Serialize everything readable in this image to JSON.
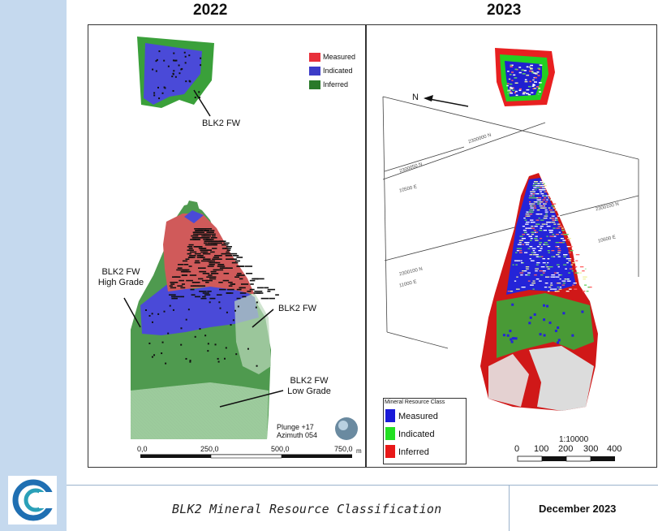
{
  "panels": {
    "left": {
      "year": "2022",
      "legend": [
        {
          "label": "Measured",
          "color": "#e8303a"
        },
        {
          "label": "Indicated",
          "color": "#3c3cc8"
        },
        {
          "label": "Inferred",
          "color": "#2a7a2a"
        }
      ],
      "annotations": {
        "top_label": "BLK2 FW",
        "high_grade_line1": "BLK2 FW",
        "high_grade_line2": "High Grade",
        "mid_label": "BLK2 FW",
        "low_grade_line1": "BLK2 FW",
        "low_grade_line2": "Low Grade"
      },
      "view": {
        "plunge": "Plunge +17",
        "azimuth": "Azimuth 054"
      },
      "scale": {
        "ticks": [
          "0,0",
          "250,0",
          "500,0",
          "750,0"
        ],
        "unit": "m"
      }
    },
    "right": {
      "year": "2023",
      "north_label": "N",
      "grid_labels": [
        "2300000 N",
        "2300050 N",
        "10500 E",
        "2300100 N",
        "10600 E",
        "2300100 N",
        "11000 E"
      ],
      "legend": {
        "title": "Mineral Resource Class",
        "items": [
          {
            "label": "Measured",
            "color": "#1a1ad8"
          },
          {
            "label": "Indicated",
            "color": "#22e022"
          },
          {
            "label": "Inferred",
            "color": "#e81818"
          }
        ]
      },
      "scale": {
        "ratio": "1:10000",
        "ticks": [
          "0",
          "100",
          "200",
          "300",
          "400"
        ]
      }
    }
  },
  "footer": {
    "title": "BLK2 Mineral Resource Classification",
    "date": "December 2023"
  },
  "colors": {
    "sidebar": "#c5d9ee",
    "logo_blue": "#1f6fb2",
    "logo_teal": "#2aa0b8"
  }
}
